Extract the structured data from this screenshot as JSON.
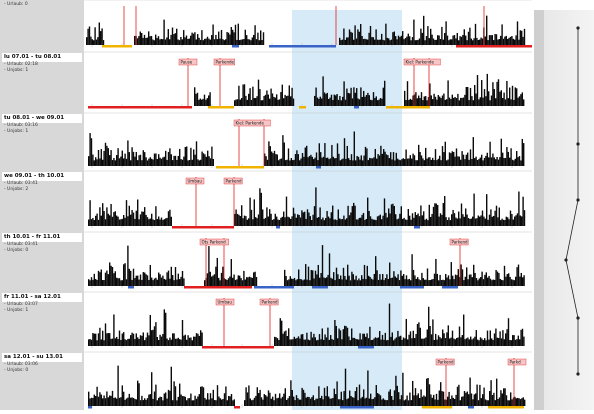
{
  "colors": {
    "highlight": "#d6eaf8",
    "activity": "#0b0b0b",
    "red": "#e02020",
    "yellow": "#f0b400",
    "blue": "#3a63c8",
    "pink_label": "#f7c5c5"
  },
  "days": [
    {
      "title": "",
      "meta": [
        "- Urlaub: 0"
      ],
      "markers": [],
      "segments": []
    },
    {
      "title": "lu 07.01 - tu 08.01",
      "meta": [
        "- Urlaub: 02:18",
        "- Unjobs: 1"
      ],
      "markers": [
        "Pause",
        "Parkende",
        "Kiel: Parkende"
      ],
      "segments": []
    },
    {
      "title": "tu 08.01 - we 09.01",
      "meta": [
        "- Urlaub: 03:16",
        "- Unjobs: 1"
      ],
      "markers": [
        "Kiel: Parkende"
      ],
      "segments": []
    },
    {
      "title": "we 09.01 - th 10.01",
      "meta": [
        "- Urlaub: 03:41",
        "- Unjobs: 2"
      ],
      "markers": [
        "Umbau",
        "Parkend"
      ],
      "segments": []
    },
    {
      "title": "th 10.01 - fr 11.01",
      "meta": [
        "- Urlaub: 03:41",
        "- Unjobs: 0"
      ],
      "markers": [
        "Ots Parkend",
        "Parkend"
      ],
      "segments": []
    },
    {
      "title": "fr 11.01 - sa 12.01",
      "meta": [
        "- Urlaub: 03:07",
        "- Unjobs: 1"
      ],
      "markers": [
        "Umbau",
        "Parkend"
      ],
      "segments": []
    },
    {
      "title": "sa 12.01 - su 13.01",
      "meta": [
        "- Urlaub: 03:06",
        "- Unjobs: 0"
      ],
      "markers": [
        "Parkend",
        "Parkd"
      ],
      "segments": []
    }
  ]
}
